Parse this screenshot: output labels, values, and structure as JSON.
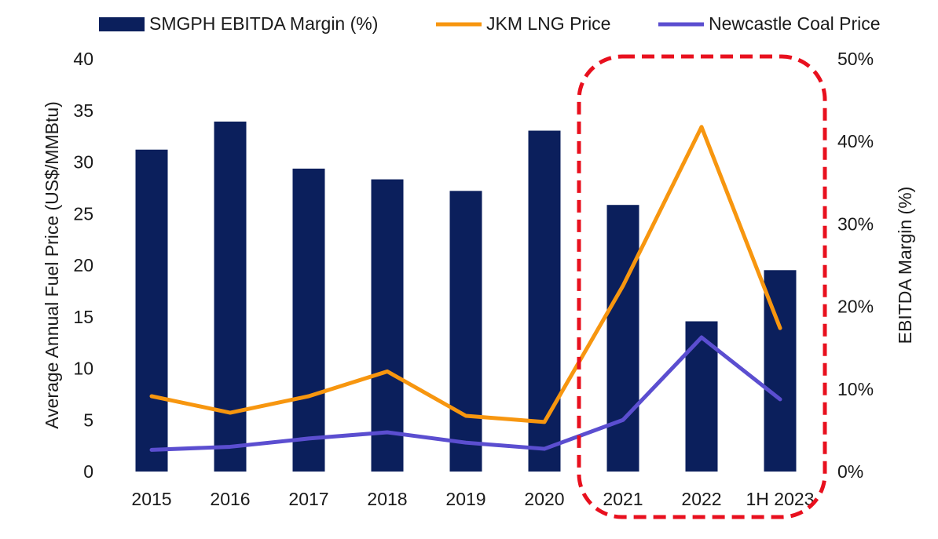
{
  "chart_data": {
    "type": "bar",
    "categories": [
      "2015",
      "2016",
      "2017",
      "2018",
      "2019",
      "2020",
      "2021",
      "2022",
      "1H 2023"
    ],
    "series": [
      {
        "name": "SMGPH EBITDA Margin (%)",
        "kind": "bar",
        "axis": "right",
        "color": "#0b1f5c",
        "values": [
          39,
          42.4,
          36.7,
          35.4,
          34,
          41.3,
          32.3,
          18.2,
          24.4
        ]
      },
      {
        "name": "JKM LNG Price",
        "kind": "line",
        "axis": "left",
        "color": "#f7960f",
        "values": [
          7.3,
          5.7,
          7.3,
          9.7,
          5.4,
          4.8,
          18.0,
          33.4,
          13.9
        ]
      },
      {
        "name": "Newcastle Coal Price",
        "kind": "line",
        "axis": "left",
        "color": "#5b4ed0",
        "values": [
          2.1,
          2.4,
          3.2,
          3.8,
          2.8,
          2.2,
          5.0,
          13.0,
          7.0
        ]
      }
    ],
    "ylabel": "Average Annual Fuel Price (US$/MMBtu)",
    "ylim": [
      0,
      40
    ],
    "yticks": [
      "0",
      "5",
      "10",
      "15",
      "20",
      "25",
      "30",
      "35",
      "40"
    ],
    "y2label": "EBITDA Margin (%)",
    "y2lim": [
      0,
      50
    ],
    "y2ticks": [
      "0%",
      "10%",
      "20%",
      "30%",
      "40%",
      "50%"
    ],
    "legend_position": "top",
    "highlight": {
      "from": "2021",
      "to": "1H 2023",
      "style": "red dashed rounded box"
    }
  }
}
